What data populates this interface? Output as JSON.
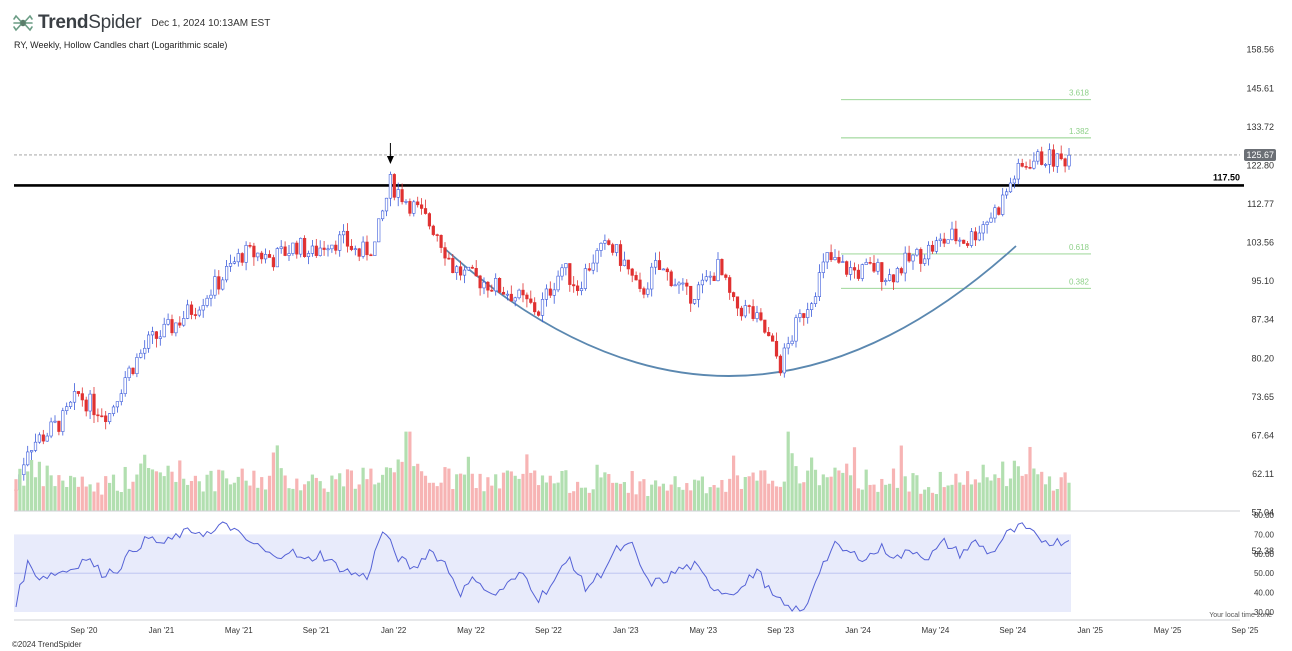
{
  "header": {
    "brand_bold": "Trend",
    "brand_light": "Spider",
    "date": "Dec 1, 2024 10:13AM EST"
  },
  "subtitle": "RY, Weekly, Hollow Candles chart (Logarithmic scale)",
  "footer": "©2024 TrendSpider",
  "timezone_note": "Your local time zone",
  "colors": {
    "up": "#3b5bdb",
    "down": "#e03131",
    "vol_up": "#b2dfb0",
    "vol_down": "#f7b4b4",
    "fib": "#8fd18a",
    "cup": "#5b88b0",
    "rsi_line": "#5562d6",
    "rsi_band": "#e8ebfb"
  },
  "chart_data": [
    {
      "type": "candlestick",
      "scale": "log",
      "ylim": [
        58,
        162
      ],
      "y_ticks": [
        158.56,
        145.61,
        133.72,
        122.8,
        112.77,
        103.56,
        95.1,
        87.34,
        80.2,
        73.65,
        67.64,
        62.11,
        57.04,
        52.38
      ],
      "x_ticks": [
        "Sep '20",
        "Jan '21",
        "May '21",
        "Sep '21",
        "Jan '22",
        "May '22",
        "Sep '22",
        "Jan '23",
        "May '23",
        "Sep '23",
        "Jan '24",
        "May '24",
        "Sep '24",
        "Jan '25",
        "May '25",
        "Sep '25"
      ],
      "last_price": 125.67,
      "resistance_level": 117.5,
      "fib_levels": [
        {
          "label": "3.618",
          "value": 142.0
        },
        {
          "label": "1.382",
          "value": 130.5
        },
        {
          "label": "0.618",
          "value": 101.0
        },
        {
          "label": "0.382",
          "value": 93.6
        }
      ],
      "close_path": [
        [
          0,
          60
        ],
        [
          3,
          66
        ],
        [
          8,
          68
        ],
        [
          12,
          70
        ],
        [
          16,
          74
        ],
        [
          20,
          72
        ],
        [
          24,
          71
        ],
        [
          28,
          77
        ],
        [
          34,
          83
        ],
        [
          40,
          86
        ],
        [
          46,
          90
        ],
        [
          52,
          95
        ],
        [
          58,
          101
        ],
        [
          62,
          101
        ],
        [
          66,
          100
        ],
        [
          72,
          103
        ],
        [
          76,
          101
        ],
        [
          80,
          104
        ],
        [
          84,
          104
        ],
        [
          88,
          101
        ],
        [
          92,
          103
        ],
        [
          96,
          118
        ],
        [
          100,
          114
        ],
        [
          104,
          110
        ],
        [
          108,
          106
        ],
        [
          112,
          98
        ],
        [
          116,
          96
        ],
        [
          120,
          95
        ],
        [
          126,
          93
        ],
        [
          130,
          91
        ],
        [
          134,
          89
        ],
        [
          140,
          98
        ],
        [
          144,
          94
        ],
        [
          148,
          100
        ],
        [
          152,
          103
        ],
        [
          156,
          99
        ],
        [
          160,
          92
        ],
        [
          164,
          98
        ],
        [
          168,
          96
        ],
        [
          172,
          92
        ],
        [
          176,
          94
        ],
        [
          180,
          98
        ],
        [
          184,
          90
        ],
        [
          188,
          89
        ],
        [
          192,
          85
        ],
        [
          196,
          79
        ],
        [
          200,
          86
        ],
        [
          204,
          92
        ],
        [
          208,
          100
        ],
        [
          212,
          98
        ],
        [
          216,
          97
        ],
        [
          220,
          98
        ],
        [
          224,
          96
        ],
        [
          228,
          99
        ],
        [
          232,
          101
        ],
        [
          236,
          103
        ],
        [
          240,
          105
        ],
        [
          244,
          104
        ],
        [
          248,
          108
        ],
        [
          252,
          112
        ],
        [
          256,
          120
        ],
        [
          260,
          124
        ],
        [
          264,
          125
        ],
        [
          268,
          124
        ],
        [
          270,
          125.67
        ]
      ],
      "volume_scale": [
        0,
        2.8
      ],
      "volume_path": [
        [
          0,
          1.5
        ],
        [
          10,
          1.2
        ],
        [
          20,
          0.9
        ],
        [
          30,
          1.3
        ],
        [
          40,
          1.5
        ],
        [
          50,
          1.1
        ],
        [
          60,
          1.2
        ],
        [
          70,
          1.2
        ],
        [
          80,
          1.1
        ],
        [
          90,
          1.3
        ],
        [
          100,
          1.5
        ],
        [
          110,
          1.2
        ],
        [
          120,
          1.1
        ],
        [
          130,
          1.2
        ],
        [
          140,
          1.1
        ],
        [
          150,
          1.1
        ],
        [
          160,
          0.9
        ],
        [
          170,
          1.0
        ],
        [
          180,
          0.9
        ],
        [
          190,
          1.1
        ],
        [
          200,
          1.6
        ],
        [
          210,
          1.3
        ],
        [
          220,
          1.2
        ],
        [
          230,
          1.1
        ],
        [
          240,
          1.0
        ],
        [
          250,
          1.3
        ],
        [
          260,
          1.4
        ],
        [
          270,
          1.1
        ]
      ]
    },
    {
      "type": "line",
      "name": "RSI",
      "ylim": [
        30,
        80
      ],
      "band": [
        30,
        70
      ],
      "midline": 50,
      "y_ticks": [
        80.0,
        70.0,
        60.0,
        50.0,
        40.0,
        30.0
      ],
      "rsi_path": [
        [
          0,
          35
        ],
        [
          3,
          55
        ],
        [
          6,
          48
        ],
        [
          10,
          50
        ],
        [
          14,
          52
        ],
        [
          18,
          58
        ],
        [
          22,
          50
        ],
        [
          26,
          52
        ],
        [
          30,
          62
        ],
        [
          34,
          68
        ],
        [
          38,
          65
        ],
        [
          42,
          70
        ],
        [
          46,
          72
        ],
        [
          50,
          70
        ],
        [
          54,
          76
        ],
        [
          58,
          68
        ],
        [
          62,
          64
        ],
        [
          66,
          58
        ],
        [
          70,
          62
        ],
        [
          74,
          56
        ],
        [
          78,
          60
        ],
        [
          82,
          54
        ],
        [
          86,
          50
        ],
        [
          90,
          48
        ],
        [
          94,
          72
        ],
        [
          98,
          58
        ],
        [
          102,
          52
        ],
        [
          106,
          62
        ],
        [
          110,
          55
        ],
        [
          114,
          40
        ],
        [
          118,
          48
        ],
        [
          122,
          38
        ],
        [
          126,
          44
        ],
        [
          130,
          50
        ],
        [
          134,
          37
        ],
        [
          138,
          46
        ],
        [
          142,
          58
        ],
        [
          146,
          42
        ],
        [
          150,
          50
        ],
        [
          154,
          62
        ],
        [
          158,
          64
        ],
        [
          162,
          45
        ],
        [
          166,
          46
        ],
        [
          170,
          52
        ],
        [
          174,
          54
        ],
        [
          178,
          44
        ],
        [
          182,
          40
        ],
        [
          186,
          42
        ],
        [
          190,
          52
        ],
        [
          194,
          38
        ],
        [
          198,
          32
        ],
        [
          202,
          30
        ],
        [
          206,
          52
        ],
        [
          210,
          64
        ],
        [
          214,
          60
        ],
        [
          218,
          58
        ],
        [
          222,
          63
        ],
        [
          226,
          58
        ],
        [
          230,
          62
        ],
        [
          234,
          58
        ],
        [
          238,
          66
        ],
        [
          242,
          60
        ],
        [
          246,
          66
        ],
        [
          250,
          60
        ],
        [
          254,
          70
        ],
        [
          258,
          74
        ],
        [
          262,
          68
        ],
        [
          266,
          66
        ],
        [
          270,
          67
        ]
      ]
    }
  ]
}
